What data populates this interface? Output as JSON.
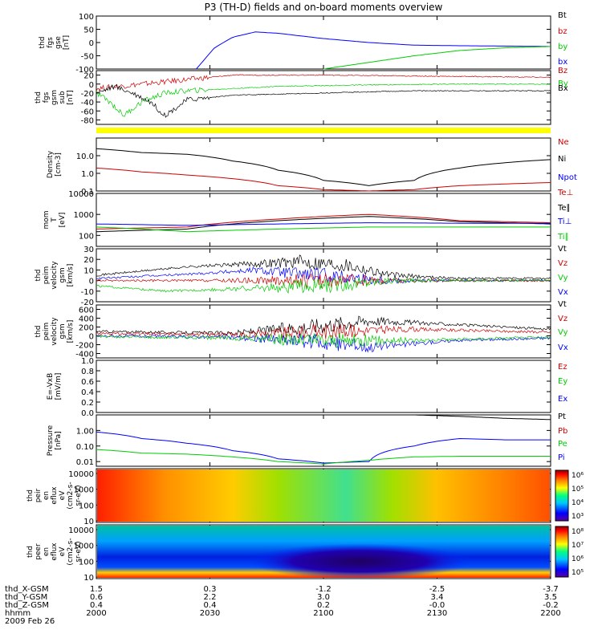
{
  "title": "P3 (TH-D) fields and on-board moments overview",
  "date_label": "2009 Feb 26",
  "orbit_rows": [
    {
      "label": "thd_X-GSM",
      "values": [
        "1.5",
        "0.3",
        "-1.2",
        "-2.5",
        "-3.7"
      ]
    },
    {
      "label": "thd_Y-GSM",
      "values": [
        "0.6",
        "2.2",
        "3.0",
        "3.4",
        "3.5"
      ]
    },
    {
      "label": "thd_Z-GSM",
      "values": [
        "0.4",
        "0.4",
        "0.2",
        "-0.0",
        "-0.2"
      ]
    },
    {
      "label": "hhmm",
      "values": [
        "2000",
        "2030",
        "2100",
        "2130",
        "2200"
      ]
    }
  ],
  "time_axis": {
    "start": "20:00",
    "end": "22:00",
    "tick_labels": [
      "2000",
      "2030",
      "2100",
      "2130",
      "2200"
    ]
  },
  "colors": {
    "black": "#000000",
    "red": "#cc0000",
    "green": "#00cc00",
    "blue": "#0000ff",
    "yellow": "#ffff00"
  },
  "colorbar_ticks": {
    "spec_ion": [
      "10⁶",
      "10⁵",
      "10⁴",
      "10³"
    ],
    "spec_elec": [
      "10⁸",
      "10⁷",
      "10⁶",
      "10⁵"
    ]
  },
  "chart_data": [
    {
      "type": "line",
      "id": "fgs_gse",
      "ylabel": [
        "thd",
        "fgs",
        "gse",
        "[nT]"
      ],
      "ylim": [
        -100,
        100
      ],
      "yticks": [
        "100",
        "50",
        "0",
        "-50",
        "-100"
      ],
      "legend": [
        {
          "name": "Bt",
          "color": "black"
        },
        {
          "name": "bz",
          "color": "red"
        },
        {
          "name": "by",
          "color": "green"
        },
        {
          "name": "bx",
          "color": "blue"
        }
      ],
      "series": [
        {
          "name": "Bt",
          "color": "black",
          "x": [
            0.0,
            0.3,
            1.0
          ],
          "y": [
            -100,
            -100,
            -100
          ]
        },
        {
          "name": "bx",
          "color": "blue",
          "x": [
            0.22,
            0.26,
            0.3,
            0.35,
            0.4,
            0.5,
            0.6,
            0.7,
            0.8,
            1.0
          ],
          "y": [
            -100,
            -20,
            20,
            40,
            35,
            15,
            0,
            -10,
            -12,
            -15
          ]
        },
        {
          "name": "by",
          "color": "green",
          "x": [
            0.5,
            0.6,
            0.7,
            0.8,
            0.9,
            1.0
          ],
          "y": [
            -100,
            -75,
            -50,
            -30,
            -20,
            -15
          ]
        }
      ]
    },
    {
      "type": "line",
      "id": "fgs_gsm",
      "ylabel": [
        "thd",
        "fgs",
        "gsm",
        "sub",
        "[nT]"
      ],
      "ylim": [
        -90,
        30
      ],
      "yticks": [
        "20",
        "0",
        "-20",
        "-40",
        "-60",
        "-80"
      ],
      "legend": [
        {
          "name": "Bz",
          "color": "red"
        },
        {
          "name": "By",
          "color": "green"
        },
        {
          "name": "Bx",
          "color": "black"
        }
      ],
      "series": [
        {
          "name": "Bz",
          "color": "red",
          "x": [
            0.0,
            0.05,
            0.1,
            0.15,
            0.2,
            0.25,
            0.3,
            0.5,
            0.7,
            1.0
          ],
          "y": [
            -10,
            -5,
            0,
            5,
            10,
            15,
            20,
            20,
            18,
            15
          ]
        },
        {
          "name": "By",
          "color": "green",
          "x": [
            0.0,
            0.03,
            0.06,
            0.1,
            0.15,
            0.2,
            0.3,
            0.4,
            0.6,
            0.8,
            1.0
          ],
          "y": [
            -20,
            -40,
            -70,
            -40,
            -20,
            -15,
            -10,
            -5,
            -2,
            0,
            0
          ]
        },
        {
          "name": "Bx",
          "color": "black",
          "x": [
            0.0,
            0.04,
            0.08,
            0.12,
            0.15,
            0.18,
            0.2,
            0.3,
            0.5,
            0.7,
            1.0
          ],
          "y": [
            -20,
            -5,
            -20,
            -40,
            -70,
            -50,
            -35,
            -25,
            -20,
            -15,
            -15
          ]
        }
      ]
    },
    {
      "type": "line",
      "id": "density",
      "yscale": "log",
      "ylabel": [
        "Density",
        "[cm-3]"
      ],
      "ylim": [
        0.1,
        100.0
      ],
      "yticks": [
        "10.0",
        "1.0",
        "0.1"
      ],
      "legend": [
        {
          "name": "Ne",
          "color": "red"
        },
        {
          "name": "Ni",
          "color": "black"
        },
        {
          "name": "Npot",
          "color": "blue"
        }
      ],
      "series": [
        {
          "name": "Ni",
          "color": "black",
          "x": [
            0.0,
            0.1,
            0.2,
            0.3,
            0.4,
            0.5,
            0.6,
            0.7,
            0.8,
            0.9,
            1.0
          ],
          "y": [
            25,
            15,
            12,
            5,
            1.5,
            0.4,
            0.2,
            0.4,
            2,
            4,
            6
          ]
        },
        {
          "name": "Ne",
          "color": "red",
          "x": [
            0.0,
            0.1,
            0.2,
            0.3,
            0.4,
            0.5,
            0.6,
            0.7,
            0.8,
            0.9,
            1.0
          ],
          "y": [
            2,
            1.2,
            0.8,
            0.5,
            0.2,
            0.12,
            0.1,
            0.12,
            0.2,
            0.25,
            0.3
          ]
        }
      ]
    },
    {
      "type": "line",
      "id": "mom_temp",
      "yscale": "log",
      "ylabel": [
        "mom",
        "T",
        "[eV]"
      ],
      "ylim": [
        30,
        10000
      ],
      "yticks": [
        "10000",
        "1000",
        "100"
      ],
      "legend": [
        {
          "name": "Te⊥",
          "color": "red"
        },
        {
          "name": "Te∥",
          "color": "black"
        },
        {
          "name": "Ti⊥",
          "color": "blue"
        },
        {
          "name": "Ti∥",
          "color": "green"
        }
      ],
      "series": [
        {
          "name": "Te⊥",
          "color": "red",
          "x": [
            0.0,
            0.2,
            0.4,
            0.6,
            0.8,
            1.0
          ],
          "y": [
            200,
            250,
            600,
            1000,
            500,
            400
          ]
        },
        {
          "name": "Te∥",
          "color": "black",
          "x": [
            0.0,
            0.2,
            0.4,
            0.6,
            0.8,
            1.0
          ],
          "y": [
            150,
            200,
            500,
            800,
            450,
            350
          ]
        },
        {
          "name": "Ti⊥",
          "color": "blue",
          "x": [
            0.0,
            0.2,
            0.4,
            0.6,
            0.8,
            1.0
          ],
          "y": [
            350,
            300,
            350,
            400,
            380,
            380
          ]
        },
        {
          "name": "Ti∥",
          "color": "green",
          "x": [
            0.0,
            0.2,
            0.4,
            0.6,
            0.8,
            1.0
          ],
          "y": [
            250,
            150,
            200,
            250,
            250,
            250
          ]
        }
      ]
    },
    {
      "type": "line",
      "id": "peim_vel",
      "ylabel": [
        "thd",
        "peim",
        "velocity",
        "gsm",
        "[km/s]"
      ],
      "ylim": [
        -20,
        30
      ],
      "yticks": [
        "30",
        "20",
        "10",
        "0",
        "-10",
        "-20"
      ],
      "legend": [
        {
          "name": "Vt",
          "color": "black"
        },
        {
          "name": "Vz",
          "color": "red"
        },
        {
          "name": "Vy",
          "color": "green"
        },
        {
          "name": "Vx",
          "color": "blue"
        }
      ],
      "series": [
        {
          "name": "Vt",
          "color": "black",
          "x": [
            0.0,
            0.2,
            0.3,
            0.45,
            0.55,
            0.65,
            0.8,
            1.0
          ],
          "y": [
            5,
            13,
            15,
            18,
            15,
            5,
            2,
            2
          ]
        },
        {
          "name": "Vx",
          "color": "blue",
          "x": [
            0.0,
            0.2,
            0.35,
            0.5,
            0.65,
            0.8,
            1.0
          ],
          "y": [
            2,
            6,
            10,
            5,
            0,
            0,
            0
          ]
        },
        {
          "name": "Vz",
          "color": "red",
          "x": [
            0.0,
            0.3,
            0.5,
            0.7,
            1.0
          ],
          "y": [
            0,
            0,
            0,
            0,
            0
          ]
        },
        {
          "name": "Vy",
          "color": "green",
          "x": [
            0.0,
            0.15,
            0.3,
            0.5,
            0.65,
            1.0
          ],
          "y": [
            -5,
            -10,
            -8,
            -5,
            0,
            0
          ]
        }
      ]
    },
    {
      "type": "line",
      "id": "peim_vel2",
      "ylabel": [
        "thd",
        "peim",
        "velocity",
        "gsm",
        "[km/s]"
      ],
      "ylim": [
        -500,
        700
      ],
      "yticks": [
        "600",
        "400",
        "200",
        "0",
        "-200",
        "-400"
      ],
      "legend": [
        {
          "name": "Vt",
          "color": "black"
        },
        {
          "name": "Vz",
          "color": "red"
        },
        {
          "name": "Vy",
          "color": "green"
        },
        {
          "name": "Vx",
          "color": "blue"
        }
      ],
      "series": [
        {
          "name": "Vt",
          "color": "black",
          "x": [
            0.0,
            0.3,
            0.45,
            0.6,
            0.8,
            1.0
          ],
          "y": [
            100,
            60,
            200,
            350,
            250,
            150
          ]
        },
        {
          "name": "Vz",
          "color": "red",
          "x": [
            0.0,
            0.3,
            0.5,
            0.7,
            1.0
          ],
          "y": [
            50,
            30,
            100,
            150,
            80
          ]
        },
        {
          "name": "Vx",
          "color": "blue",
          "x": [
            0.0,
            0.3,
            0.5,
            0.6,
            0.8,
            1.0
          ],
          "y": [
            0,
            -30,
            -150,
            -250,
            -100,
            -50
          ]
        },
        {
          "name": "Vy",
          "color": "green",
          "x": [
            0.0,
            0.3,
            0.5,
            0.7,
            1.0
          ],
          "y": [
            -20,
            -50,
            -100,
            -100,
            -30
          ]
        }
      ]
    },
    {
      "type": "line",
      "id": "efield",
      "ylabel": [
        "E=-VxB",
        "[mV/m]"
      ],
      "ylim": [
        0.0,
        1.0
      ],
      "yticks": [
        "1.0",
        "0.8",
        "0.6",
        "0.4",
        "0.2",
        "0.0"
      ],
      "legend": [
        {
          "name": "Ez",
          "color": "red"
        },
        {
          "name": "Ey",
          "color": "green"
        },
        {
          "name": "Ex",
          "color": "blue"
        }
      ],
      "series": []
    },
    {
      "type": "line",
      "id": "pressure",
      "yscale": "log",
      "ylabel": [
        "Pressure",
        "[nPa]"
      ],
      "ylim": [
        0.005,
        10
      ],
      "yticks": [
        "1.00",
        "0.10",
        "0.01"
      ],
      "legend": [
        {
          "name": "Pt",
          "color": "black"
        },
        {
          "name": "Pb",
          "color": "red"
        },
        {
          "name": "Pe",
          "color": "green"
        },
        {
          "name": "Pi",
          "color": "blue"
        }
      ],
      "series": [
        {
          "name": "Pt",
          "color": "black",
          "x": [
            0.7,
            0.8,
            0.9,
            1.0
          ],
          "y": [
            10,
            8,
            6,
            5
          ]
        },
        {
          "name": "Pi",
          "color": "blue",
          "x": [
            0.0,
            0.1,
            0.2,
            0.3,
            0.4,
            0.5,
            0.6,
            0.7,
            0.8,
            0.9,
            1.0
          ],
          "y": [
            0.8,
            0.3,
            0.15,
            0.05,
            0.015,
            0.008,
            0.01,
            0.1,
            0.3,
            0.25,
            0.25
          ]
        },
        {
          "name": "Pe",
          "color": "green",
          "x": [
            0.0,
            0.1,
            0.2,
            0.3,
            0.4,
            0.5,
            0.6,
            0.7,
            0.8,
            0.9,
            1.0
          ],
          "y": [
            0.06,
            0.035,
            0.03,
            0.02,
            0.01,
            0.007,
            0.012,
            0.02,
            0.022,
            0.022,
            0.022
          ]
        }
      ]
    },
    {
      "type": "heatmap",
      "id": "spec_ion",
      "ylabel": [
        "thd",
        "peir",
        "en",
        "eflux",
        "eV",
        "(cm2-s-",
        "sr-eV)"
      ],
      "yscale": "log",
      "ylim": [
        8,
        20000
      ],
      "yticks": [
        "10000",
        "1000",
        "100",
        "10"
      ],
      "colorbar": "10^3 to 10^6"
    },
    {
      "type": "heatmap",
      "id": "spec_elec",
      "ylabel": [
        "thd",
        "peer",
        "en",
        "eflux",
        "eV",
        "(cm2-s-",
        "sr-eV)"
      ],
      "yscale": "log",
      "ylim": [
        8,
        20000
      ],
      "yticks": [
        "10000",
        "1000",
        "100",
        "10"
      ],
      "colorbar": "10^5 to 10^8"
    }
  ]
}
